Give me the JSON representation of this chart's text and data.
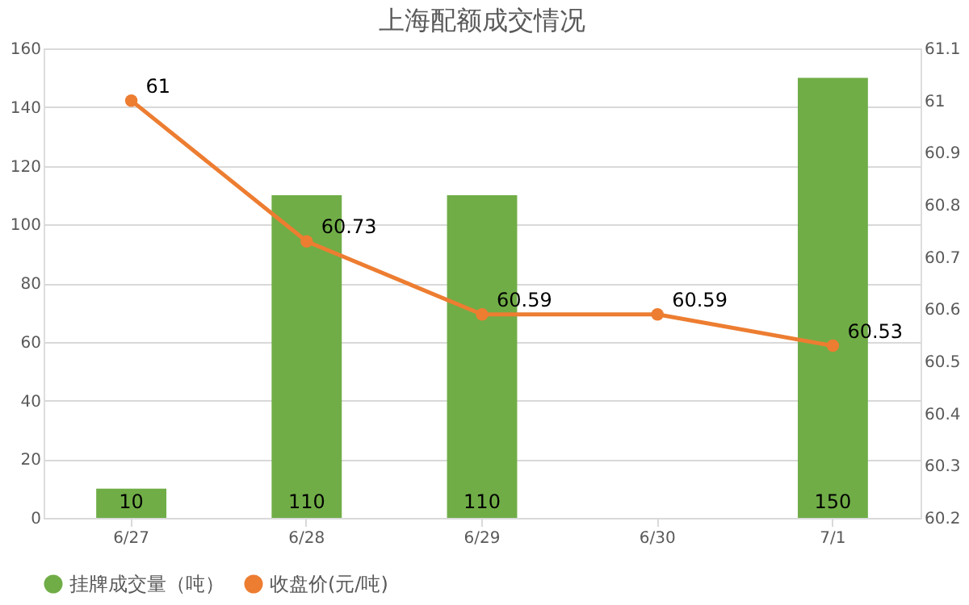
{
  "chart_data": {
    "type": "bar",
    "title": "上海配额成交情况",
    "categories": [
      "6/27",
      "6/28",
      "6/29",
      "6/30",
      "7/1"
    ],
    "series": [
      {
        "name": "挂牌成交量（吨）",
        "color": "#70ad47",
        "values": [
          10,
          110,
          110,
          null,
          150
        ]
      },
      {
        "name": "收盘价(元/吨)",
        "type": "line",
        "axis": "y2",
        "color": "#ed7d31",
        "marker": "circle",
        "values": [
          61,
          60.73,
          60.59,
          60.59,
          60.53
        ]
      }
    ],
    "ylim": [
      0,
      160
    ],
    "yticks": [
      0,
      20,
      40,
      60,
      80,
      100,
      120,
      140,
      160
    ],
    "y2lim": [
      60.2,
      61.1
    ],
    "y2ticks": [
      60.2,
      60.3,
      60.4,
      60.5,
      60.6,
      60.7,
      60.8,
      60.9,
      61,
      61.1
    ],
    "grid": "y",
    "legend": "bottom",
    "data_labels": true
  }
}
